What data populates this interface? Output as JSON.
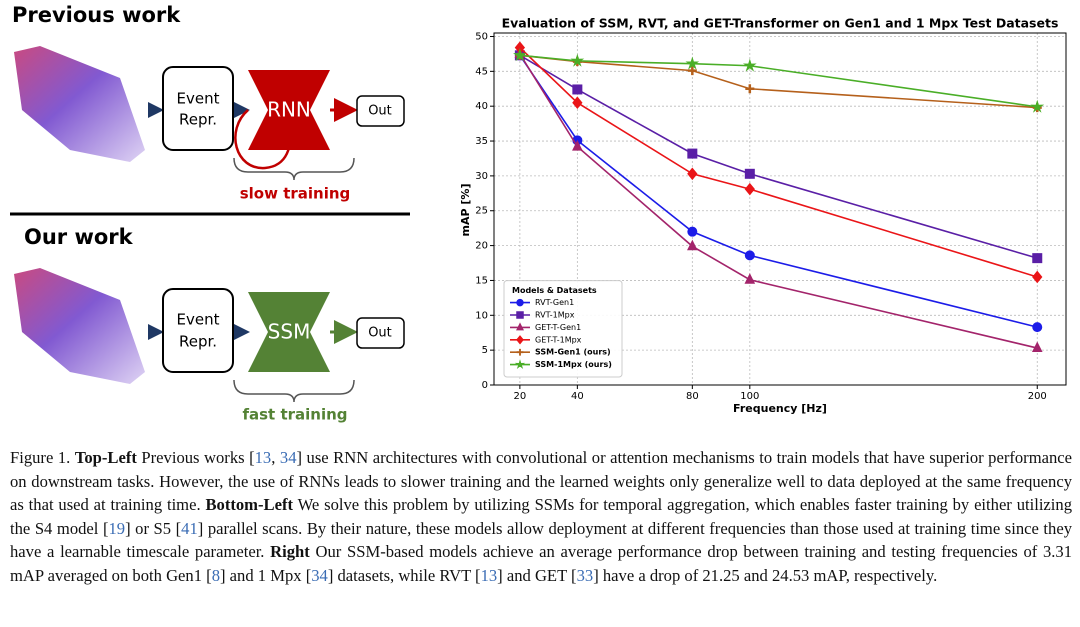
{
  "diagram": {
    "top": {
      "title": "Previous work",
      "box": [
        "Event",
        "Repr."
      ],
      "block": "RNN",
      "output": "Out",
      "note": "slow training"
    },
    "bottom": {
      "title": "Our work",
      "box": [
        "Event",
        "Repr."
      ],
      "block": "SSM",
      "output": "Out",
      "note": "fast training"
    }
  },
  "chart_data": {
    "type": "line",
    "title": "Evaluation of SSM, RVT, and GET-Transformer on Gen1 and 1 Mpx Test Datasets",
    "x_label": "Frequency [Hz]",
    "y_label": "mAP [%]",
    "x": [
      20,
      40,
      80,
      100,
      200
    ],
    "xlim": [
      11,
      210
    ],
    "xticks": [
      20,
      40,
      80,
      100,
      200
    ],
    "ylim": [
      0,
      50.5
    ],
    "yticks": [
      0,
      5,
      10,
      15,
      20,
      25,
      30,
      35,
      40,
      45,
      50
    ],
    "grid": true,
    "legend_title": "Models & Datasets",
    "legend_position": "lower-left",
    "series": [
      {
        "name": "RVT-Gen1",
        "color": "#1c1ce8",
        "marker": "circle",
        "values": [
          47.3,
          35.1,
          22.0,
          18.6,
          8.3
        ]
      },
      {
        "name": "RVT-1Mpx",
        "color": "#5a1fa6",
        "marker": "square",
        "values": [
          47.3,
          42.4,
          33.2,
          30.3,
          18.2
        ]
      },
      {
        "name": "GET-T-Gen1",
        "color": "#a3246b",
        "marker": "triangle",
        "values": [
          47.5,
          34.2,
          19.9,
          15.1,
          5.3
        ]
      },
      {
        "name": "GET-T-1Mpx",
        "color": "#ea1518",
        "marker": "diamond",
        "values": [
          48.4,
          40.5,
          30.3,
          28.1,
          15.5
        ]
      },
      {
        "name": "SSM-Gen1 (ours)",
        "color": "#b5601b",
        "marker": "plus",
        "bold": true,
        "values": [
          47.3,
          46.4,
          45.1,
          42.5,
          39.8
        ]
      },
      {
        "name": "SSM-1Mpx (ours)",
        "color": "#4aae27",
        "marker": "star",
        "bold": true,
        "values": [
          47.3,
          46.5,
          46.1,
          45.8,
          39.9
        ]
      }
    ]
  },
  "caption": {
    "runs": [
      {
        "text": "Figure 1. "
      },
      {
        "text": "Top-Left",
        "style": "bold"
      },
      {
        "text": " Previous works ["
      },
      {
        "text": "13",
        "style": "link"
      },
      {
        "text": ", "
      },
      {
        "text": "34",
        "style": "link"
      },
      {
        "text": "] use RNN architectures with convolutional or attention mechanisms to train models that have superior performance on downstream tasks. However, the use of RNNs leads to slower training and the learned weights only generalize well to data deployed at the same frequency as that used at training time. "
      },
      {
        "text": "Bottom-Left",
        "style": "bold"
      },
      {
        "text": " We solve this problem by utilizing SSMs for temporal aggregation, which enables faster training by either utilizing the S4 model ["
      },
      {
        "text": "19",
        "style": "link"
      },
      {
        "text": "] or S5 ["
      },
      {
        "text": "41",
        "style": "link"
      },
      {
        "text": "] parallel scans. By their nature, these models allow deployment at different frequencies than those used at training time since they have a learnable timescale parameter. "
      },
      {
        "text": "Right",
        "style": "bold"
      },
      {
        "text": " Our SSM-based models achieve an average performance drop between training and testing frequencies of 3.31 mAP averaged on both Gen1 ["
      },
      {
        "text": "8",
        "style": "link"
      },
      {
        "text": "] and 1 Mpx ["
      },
      {
        "text": "34",
        "style": "link"
      },
      {
        "text": "] datasets, while RVT ["
      },
      {
        "text": "13",
        "style": "link"
      },
      {
        "text": "] and GET ["
      },
      {
        "text": "33",
        "style": "link"
      },
      {
        "text": "] have a drop of 21.25 and 24.53 mAP, respectively."
      }
    ]
  }
}
